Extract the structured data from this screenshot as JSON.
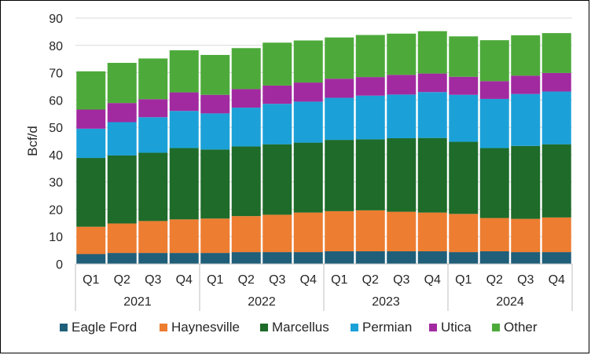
{
  "chart_data": {
    "type": "bar",
    "stacked": true,
    "title": "",
    "ylabel": "Bcf/d",
    "xlabel": "",
    "ylim": [
      0,
      90
    ],
    "yticks": [
      0,
      10,
      20,
      30,
      40,
      50,
      60,
      70,
      80,
      90
    ],
    "grid": "horizontal",
    "legend_position": "bottom",
    "categories": [
      "Q1",
      "Q2",
      "Q3",
      "Q4",
      "Q1",
      "Q2",
      "Q3",
      "Q4",
      "Q1",
      "Q2",
      "Q3",
      "Q4",
      "Q1",
      "Q2",
      "Q3",
      "Q4"
    ],
    "groups": [
      {
        "label": "2021",
        "size": 4
      },
      {
        "label": "2022",
        "size": 4
      },
      {
        "label": "2023",
        "size": 4
      },
      {
        "label": "2024",
        "size": 4
      }
    ],
    "series": [
      {
        "name": "Eagle Ford",
        "color": "#1f5f7a",
        "values": [
          3.6,
          4.0,
          4.0,
          4.0,
          4.0,
          4.3,
          4.3,
          4.3,
          4.6,
          4.6,
          4.6,
          4.6,
          4.3,
          4.6,
          4.3,
          4.3
        ]
      },
      {
        "name": "Haynesville",
        "color": "#ed7d31",
        "values": [
          10.0,
          10.8,
          11.7,
          12.3,
          12.6,
          13.2,
          13.7,
          14.5,
          14.7,
          15.0,
          14.5,
          14.2,
          14.0,
          12.2,
          12.2,
          12.7
        ]
      },
      {
        "name": "Marcellus",
        "color": "#1e6b2a",
        "values": [
          25.2,
          24.9,
          25.0,
          26.1,
          25.3,
          25.5,
          25.8,
          25.6,
          26.1,
          26.0,
          26.9,
          27.3,
          26.4,
          25.6,
          26.7,
          26.8
        ]
      },
      {
        "name": "Permian",
        "color": "#1ba1d8",
        "values": [
          10.7,
          12.2,
          13.0,
          13.6,
          13.2,
          14.2,
          14.8,
          15.0,
          15.4,
          16.0,
          16.0,
          16.8,
          17.2,
          18.0,
          19.0,
          19.3
        ]
      },
      {
        "name": "Utica",
        "color": "#a22aa0",
        "values": [
          7.0,
          7.0,
          6.6,
          6.8,
          6.8,
          6.8,
          6.7,
          7.0,
          7.0,
          6.8,
          7.2,
          6.8,
          6.6,
          6.5,
          6.7,
          6.8
        ]
      },
      {
        "name": "Other",
        "color": "#4daa3a",
        "values": [
          14.0,
          14.7,
          14.9,
          15.4,
          14.6,
          15.0,
          15.7,
          15.4,
          15.1,
          15.4,
          15.1,
          15.5,
          14.8,
          15.0,
          14.8,
          14.6
        ]
      }
    ]
  }
}
